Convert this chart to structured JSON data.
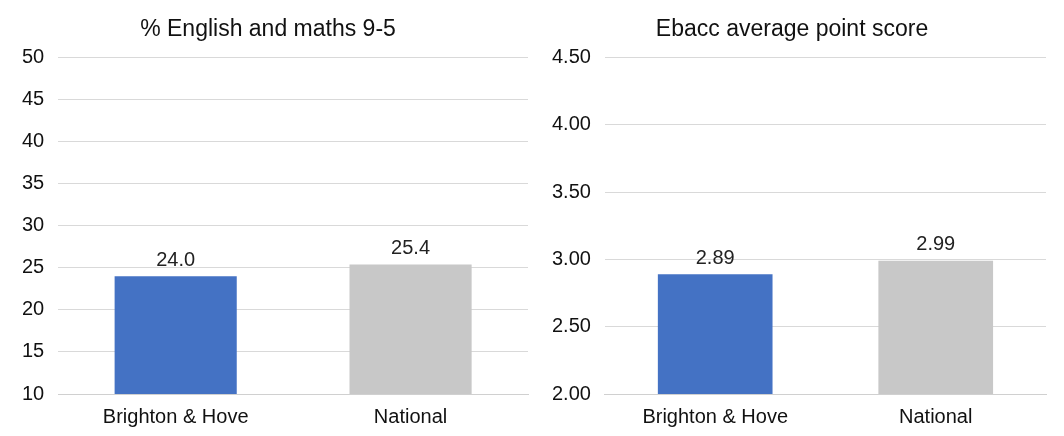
{
  "chart_data": [
    {
      "type": "bar",
      "title": "% English and maths 9-5",
      "categories": [
        "Brighton & Hove",
        "National"
      ],
      "values": [
        24.0,
        25.4
      ],
      "colors": [
        "#4472c4",
        "#c8c8c8"
      ],
      "value_labels": [
        "24.0",
        "25.4"
      ],
      "ylim": [
        10,
        50
      ],
      "yticks": [
        10,
        15,
        20,
        25,
        30,
        35,
        40,
        45,
        50
      ],
      "grid": "y"
    },
    {
      "type": "bar",
      "title": "Ebacc average point score",
      "categories": [
        "Brighton & Hove",
        "National"
      ],
      "values": [
        2.89,
        2.99
      ],
      "colors": [
        "#4472c4",
        "#c8c8c8"
      ],
      "data_labels": true,
      "ylim": [
        2,
        4.5
      ],
      "yticks": [
        {
          "value": 2,
          "label": "2.00"
        },
        {
          "value": 2.5,
          "label": "2.50"
        },
        {
          "value": 3,
          "label": "3.00"
        },
        {
          "value": 3.5,
          "label": "3.50"
        },
        {
          "value": 4,
          "label": "4.00"
        },
        {
          "value": 4.5,
          "label": "4.50"
        }
      ],
      "grid": "y"
    }
  ]
}
